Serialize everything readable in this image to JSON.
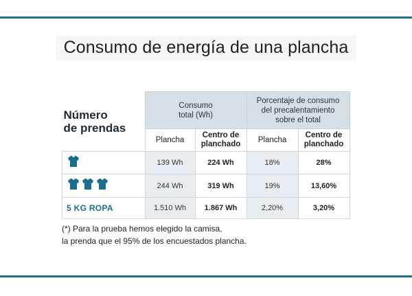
{
  "title": "Consumo de energía de una plancha",
  "table": {
    "row_header": [
      "Número",
      "de prendas"
    ],
    "groups": [
      {
        "label": [
          "Consumo",
          "total (Wh)"
        ]
      },
      {
        "label": [
          "Porcentaje de consumo",
          "del precalentamiento",
          "sobre el total"
        ]
      }
    ],
    "subheaders": [
      "Plancha",
      "Centro de planchado",
      "Plancha",
      "Centro de planchado"
    ],
    "rows": [
      {
        "label_icon": "shirt-icon",
        "icon_count": 1,
        "label_text": "",
        "values": [
          "139 Wh",
          "224 Wh",
          "18%",
          "28%"
        ]
      },
      {
        "label_icon": "shirt-icon",
        "icon_count": 3,
        "label_text": "",
        "values": [
          "244 Wh",
          "319 Wh",
          "19%",
          "13,60%"
        ]
      },
      {
        "label_icon": "",
        "icon_count": 0,
        "label_text": "5 KG ROPA",
        "values": [
          "1.510 Wh",
          "1.867 Wh",
          "2,20%",
          "3,20%"
        ]
      }
    ]
  },
  "note": [
    "(*) Para la prueba hemos elegido la camisa,",
    "la prenda que el 95% de los encuestados plancha."
  ],
  "colors": {
    "accent": "#1b6f8d",
    "header_bg": "#d6dfe5",
    "cell_bg": "#e7edf1",
    "shirt": "#1a6f8f"
  }
}
